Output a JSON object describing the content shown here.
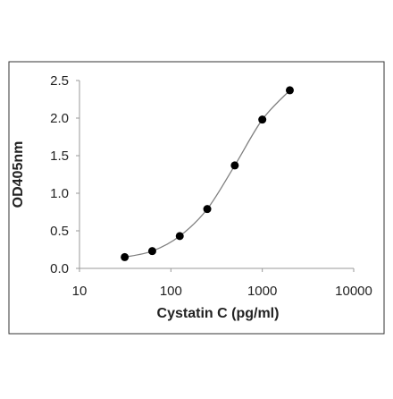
{
  "chart_data": {
    "type": "scatter",
    "title": "",
    "xlabel": "Cystatin C (pg/ml)",
    "ylabel": "OD405nm",
    "xscale": "log",
    "xlim": [
      10,
      10000
    ],
    "ylim": [
      0,
      2.5
    ],
    "xticks": [
      "10",
      "100",
      "1000",
      "10000"
    ],
    "yticks": [
      "0.0",
      "0.5",
      "1.0",
      "1.5",
      "2.0",
      "2.5"
    ],
    "grid": false,
    "legend": "none",
    "series": [
      {
        "x": [
          31.25,
          62.5,
          125,
          250,
          500,
          1000,
          2000
        ],
        "y": [
          0.15,
          0.23,
          0.43,
          0.79,
          1.37,
          1.98,
          2.37
        ],
        "marker": "circle",
        "line": "smooth"
      }
    ],
    "colors": {
      "marker": "#000000",
      "line": "#808080",
      "axis": "#9a9a9a",
      "frame": "#333333"
    }
  }
}
